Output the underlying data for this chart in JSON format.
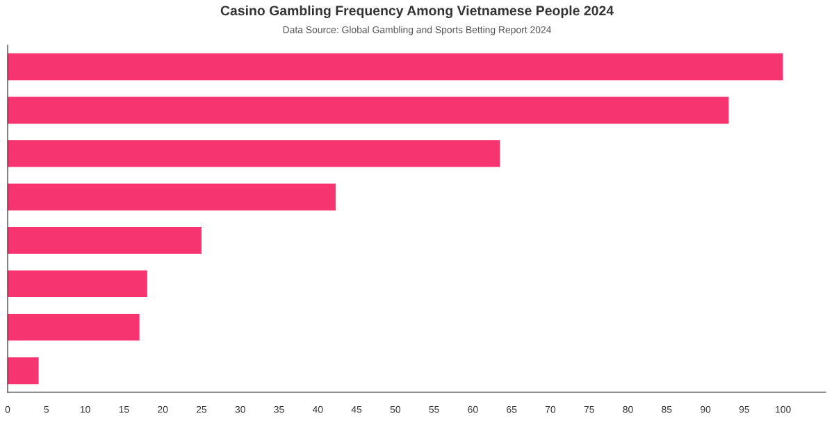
{
  "chart_data": {
    "type": "bar",
    "orientation": "horizontal",
    "title": "Casino Gambling Frequency Among Vietnamese People 2024",
    "subtitle": "Data Source: Global Gambling and Sports Betting Report 2024",
    "categories": [
      null,
      null,
      null,
      null,
      null,
      null,
      null,
      null
    ],
    "values": [
      100,
      93,
      63.5,
      42.3,
      25,
      18,
      17,
      4
    ],
    "color": "#f6346f",
    "xlim": [
      0,
      105.5
    ],
    "xticks": [
      0,
      5,
      10,
      15,
      20,
      25,
      30,
      35,
      40,
      45,
      50,
      55,
      60,
      65,
      70,
      75,
      80,
      85,
      90,
      95,
      100
    ],
    "tick_labels": "x",
    "grid": false,
    "legend": false
  }
}
